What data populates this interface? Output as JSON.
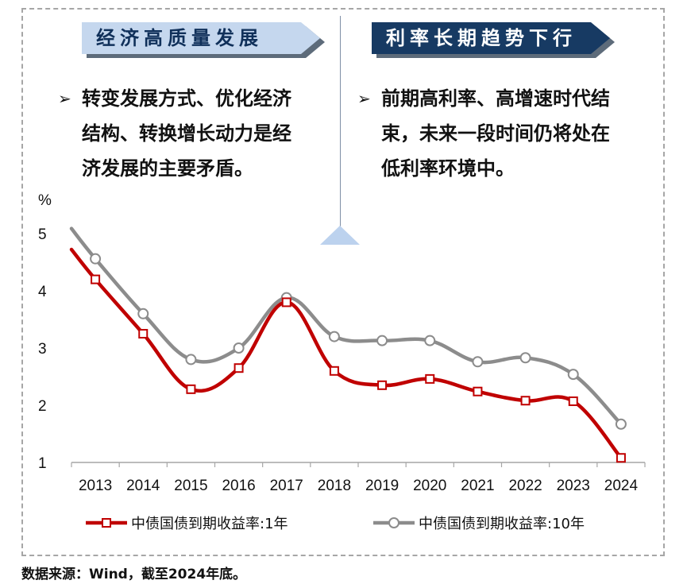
{
  "banners": {
    "left": "经济高质量发展",
    "right": "利率长期趋势下行"
  },
  "bullets": {
    "mark": "➢",
    "left": "转变发展方式、优化经济结构、转换增长动力是经济发展的主要矛盾。",
    "right": "前期高利率、高增速时代结束，未来一段时间仍将处在低利率环境中。"
  },
  "chart_data": {
    "type": "line",
    "ylabel": "%",
    "ylim": [
      1,
      5
    ],
    "yticks": [
      1,
      2,
      3,
      4,
      5
    ],
    "categories": [
      "2013",
      "2014",
      "2015",
      "2016",
      "2017",
      "2018",
      "2019",
      "2020",
      "2021",
      "2022",
      "2023",
      "2024"
    ],
    "series": [
      {
        "name": "中债国债到期收益率:1年",
        "color": "#c00000",
        "marker": "square",
        "values": [
          4.2,
          3.25,
          2.28,
          2.65,
          3.8,
          2.6,
          2.35,
          2.46,
          2.24,
          2.08,
          2.07,
          1.08
        ]
      },
      {
        "name": "中债国债到期收益率:10年",
        "color": "#8c8c8c",
        "marker": "circle",
        "values": [
          4.56,
          3.6,
          2.8,
          3.0,
          3.88,
          3.2,
          3.13,
          3.13,
          2.76,
          2.83,
          2.54,
          1.67
        ]
      }
    ]
  },
  "source": "数据来源：Wind，截至2024年底。"
}
